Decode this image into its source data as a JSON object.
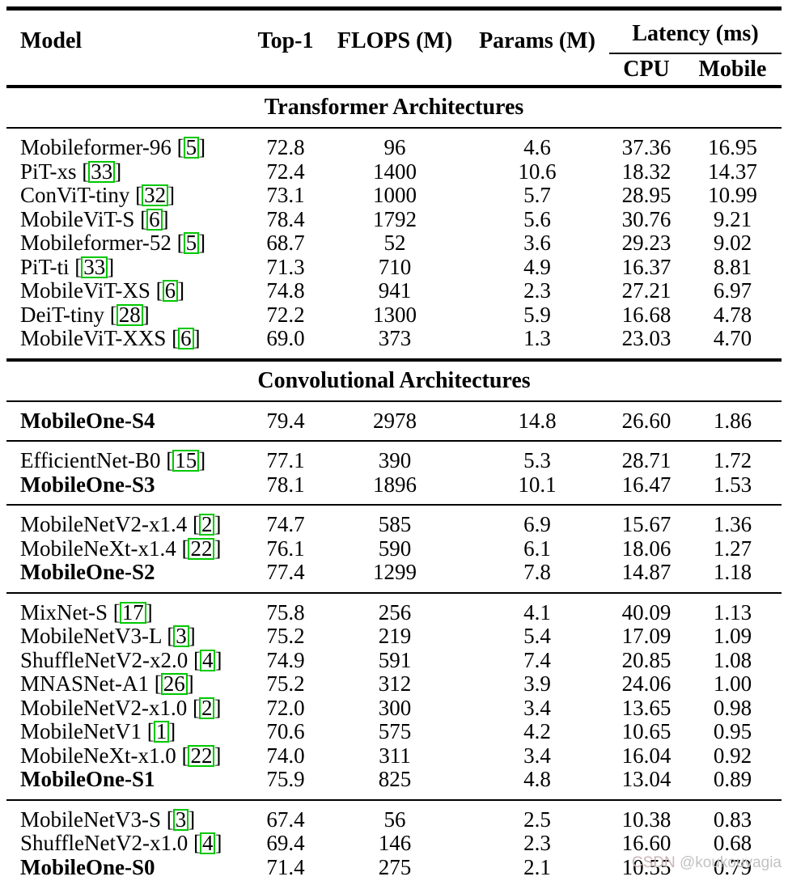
{
  "colors": {
    "citation_box": "#00c800",
    "text": "#000000",
    "watermark_brand": "#c9b6b6",
    "watermark_handle": "#c2c2c2",
    "background": "#ffffff"
  },
  "watermark": {
    "brand": "CSDN",
    "handle": "@koukouvagia"
  },
  "table": {
    "headers": {
      "model": "Model",
      "top1": "Top-1",
      "flops": "FLOPS (M)",
      "params": "Params (M)",
      "latency_group": "Latency (ms)",
      "cpu": "CPU",
      "mobile": "Mobile"
    },
    "sections": [
      {
        "title": "Transformer Architectures",
        "groups": [
          {
            "rows": [
              {
                "model": "Mobileformer-96",
                "cite": "5",
                "bold": false,
                "top1": "72.8",
                "flops": "96",
                "params": "4.6",
                "cpu": "37.36",
                "mobile": "16.95"
              },
              {
                "model": "PiT-xs",
                "cite": "33",
                "bold": false,
                "top1": "72.4",
                "flops": "1400",
                "params": "10.6",
                "cpu": "18.32",
                "mobile": "14.37"
              },
              {
                "model": "ConViT-tiny",
                "cite": "32",
                "bold": false,
                "top1": "73.1",
                "flops": "1000",
                "params": "5.7",
                "cpu": "28.95",
                "mobile": "10.99"
              },
              {
                "model": "MobileViT-S",
                "cite": "6",
                "bold": false,
                "top1": "78.4",
                "flops": "1792",
                "params": "5.6",
                "cpu": "30.76",
                "mobile": "9.21"
              },
              {
                "model": "Mobileformer-52",
                "cite": "5",
                "bold": false,
                "top1": "68.7",
                "flops": "52",
                "params": "3.6",
                "cpu": "29.23",
                "mobile": "9.02"
              },
              {
                "model": "PiT-ti",
                "cite": "33",
                "bold": false,
                "top1": "71.3",
                "flops": "710",
                "params": "4.9",
                "cpu": "16.37",
                "mobile": "8.81"
              },
              {
                "model": "MobileViT-XS",
                "cite": "6",
                "bold": false,
                "top1": "74.8",
                "flops": "941",
                "params": "2.3",
                "cpu": "27.21",
                "mobile": "6.97"
              },
              {
                "model": "DeiT-tiny",
                "cite": "28",
                "bold": false,
                "top1": "72.2",
                "flops": "1300",
                "params": "5.9",
                "cpu": "16.68",
                "mobile": "4.78"
              },
              {
                "model": "MobileViT-XXS",
                "cite": "6",
                "bold": false,
                "top1": "69.0",
                "flops": "373",
                "params": "1.3",
                "cpu": "23.03",
                "mobile": "4.70"
              }
            ]
          }
        ]
      },
      {
        "title": "Convolutional Architectures",
        "groups": [
          {
            "rows": [
              {
                "model": "MobileOne-S4",
                "cite": null,
                "bold": true,
                "top1": "79.4",
                "flops": "2978",
                "params": "14.8",
                "cpu": "26.60",
                "mobile": "1.86"
              }
            ]
          },
          {
            "rows": [
              {
                "model": "EfficientNet-B0",
                "cite": "15",
                "bold": false,
                "top1": "77.1",
                "flops": "390",
                "params": "5.3",
                "cpu": "28.71",
                "mobile": "1.72"
              },
              {
                "model": "MobileOne-S3",
                "cite": null,
                "bold": true,
                "top1": "78.1",
                "flops": "1896",
                "params": "10.1",
                "cpu": "16.47",
                "mobile": "1.53"
              }
            ]
          },
          {
            "rows": [
              {
                "model": "MobileNetV2-x1.4",
                "cite": "2",
                "bold": false,
                "top1": "74.7",
                "flops": "585",
                "params": "6.9",
                "cpu": "15.67",
                "mobile": "1.36"
              },
              {
                "model": "MobileNeXt-x1.4",
                "cite": "22",
                "bold": false,
                "top1": "76.1",
                "flops": "590",
                "params": "6.1",
                "cpu": "18.06",
                "mobile": "1.27"
              },
              {
                "model": "MobileOne-S2",
                "cite": null,
                "bold": true,
                "top1": "77.4",
                "flops": "1299",
                "params": "7.8",
                "cpu": "14.87",
                "mobile": "1.18"
              }
            ]
          },
          {
            "rows": [
              {
                "model": "MixNet-S",
                "cite": "17",
                "bold": false,
                "top1": "75.8",
                "flops": "256",
                "params": "4.1",
                "cpu": "40.09",
                "mobile": "1.13"
              },
              {
                "model": "MobileNetV3-L",
                "cite": "3",
                "bold": false,
                "top1": "75.2",
                "flops": "219",
                "params": "5.4",
                "cpu": "17.09",
                "mobile": "1.09"
              },
              {
                "model": "ShuffleNetV2-x2.0",
                "cite": "4",
                "bold": false,
                "top1": "74.9",
                "flops": "591",
                "params": "7.4",
                "cpu": "20.85",
                "mobile": "1.08"
              },
              {
                "model": "MNASNet-A1",
                "cite": "26",
                "bold": false,
                "top1": "75.2",
                "flops": "312",
                "params": "3.9",
                "cpu": "24.06",
                "mobile": "1.00"
              },
              {
                "model": "MobileNetV2-x1.0",
                "cite": "2",
                "bold": false,
                "top1": "72.0",
                "flops": "300",
                "params": "3.4",
                "cpu": "13.65",
                "mobile": "0.98"
              },
              {
                "model": "MobileNetV1",
                "cite": "1",
                "bold": false,
                "top1": "70.6",
                "flops": "575",
                "params": "4.2",
                "cpu": "10.65",
                "mobile": "0.95"
              },
              {
                "model": "MobileNeXt-x1.0",
                "cite": "22",
                "bold": false,
                "top1": "74.0",
                "flops": "311",
                "params": "3.4",
                "cpu": "16.04",
                "mobile": "0.92"
              },
              {
                "model": "MobileOne-S1",
                "cite": null,
                "bold": true,
                "top1": "75.9",
                "flops": "825",
                "params": "4.8",
                "cpu": "13.04",
                "mobile": "0.89"
              }
            ]
          },
          {
            "rows": [
              {
                "model": "MobileNetV3-S",
                "cite": "3",
                "bold": false,
                "top1": "67.4",
                "flops": "56",
                "params": "2.5",
                "cpu": "10.38",
                "mobile": "0.83"
              },
              {
                "model": "ShuffleNetV2-x1.0",
                "cite": "4",
                "bold": false,
                "top1": "69.4",
                "flops": "146",
                "params": "2.3",
                "cpu": "16.60",
                "mobile": "0.68"
              },
              {
                "model": "MobileOne-S0",
                "cite": null,
                "bold": true,
                "top1": "71.4",
                "flops": "275",
                "params": "2.1",
                "cpu": "10.55",
                "mobile": "0.79"
              }
            ]
          }
        ]
      }
    ]
  }
}
